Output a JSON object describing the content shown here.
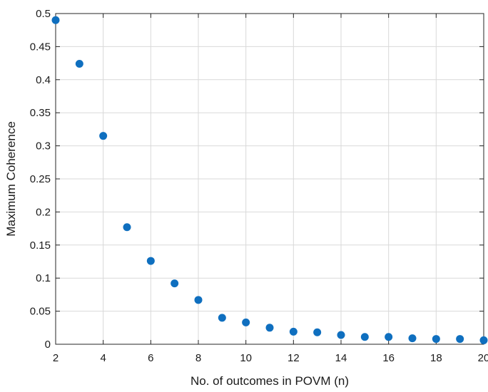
{
  "chart_data": {
    "type": "scatter",
    "title": "",
    "xlabel": "No. of outcomes in POVM (n)",
    "ylabel": "Maximum Coherence",
    "xlim": [
      2,
      20
    ],
    "ylim": [
      0,
      0.5
    ],
    "xticks": [
      2,
      4,
      6,
      8,
      10,
      12,
      14,
      16,
      18,
      20
    ],
    "yticks": [
      0,
      0.05,
      0.1,
      0.15,
      0.2,
      0.25,
      0.3,
      0.35,
      0.4,
      0.45,
      0.5
    ],
    "xtick_labels": [
      "2",
      "4",
      "6",
      "8",
      "10",
      "12",
      "14",
      "16",
      "18",
      "20"
    ],
    "ytick_labels": [
      "0",
      "0.05",
      "0.1",
      "0.15",
      "0.2",
      "0.25",
      "0.3",
      "0.35",
      "0.4",
      "0.45",
      "0.5"
    ],
    "grid": true,
    "marker_color": "#0f6fbf",
    "series": [
      {
        "x": [
          2,
          3,
          4,
          5,
          6,
          7,
          8,
          9,
          10,
          11,
          12,
          13,
          14,
          15,
          16,
          17,
          18,
          19,
          20
        ],
        "y": [
          0.49,
          0.424,
          0.315,
          0.177,
          0.126,
          0.092,
          0.067,
          0.04,
          0.033,
          0.025,
          0.019,
          0.018,
          0.014,
          0.011,
          0.011,
          0.009,
          0.008,
          0.008,
          0.006
        ]
      }
    ]
  }
}
